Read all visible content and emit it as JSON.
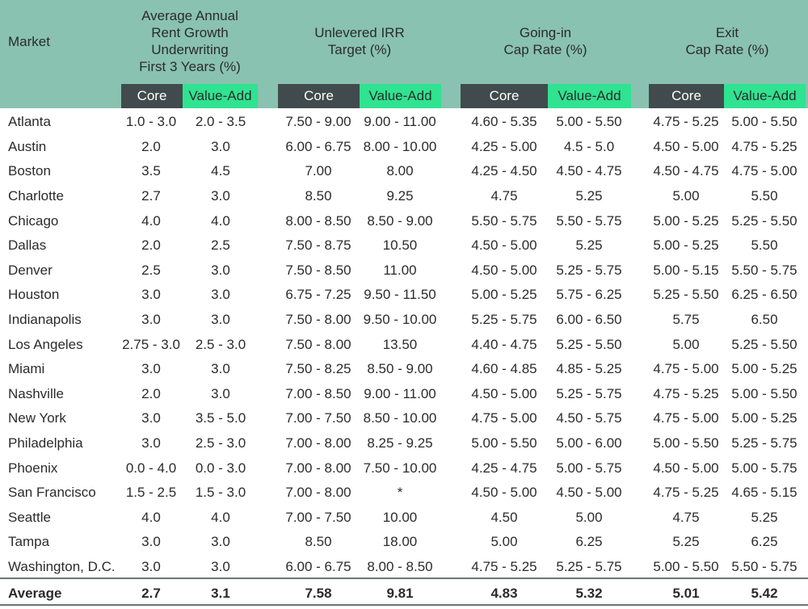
{
  "header": {
    "market": "Market",
    "groups": [
      {
        "lines": [
          "Average Annual",
          "Rent Growth",
          "Underwriting",
          "First 3 Years (%)"
        ]
      },
      {
        "lines": [
          "Unlevered IRR",
          "Target (%)"
        ]
      },
      {
        "lines": [
          "Going-in",
          "Cap Rate (%)"
        ]
      },
      {
        "lines": [
          "Exit",
          "Cap Rate (%)"
        ]
      }
    ],
    "core": "Core",
    "value_add": "Value-Add"
  },
  "rows": [
    {
      "market": "Atlanta",
      "values": [
        "1.0 - 3.0",
        "2.0 - 3.5",
        "7.50 - 9.00",
        "9.00 - 11.00",
        "4.60 - 5.35",
        "5.00 - 5.50",
        "4.75 - 5.25",
        "5.00 - 5.50"
      ]
    },
    {
      "market": "Austin",
      "values": [
        "2.0",
        "3.0",
        "6.00 - 6.75",
        "8.00 - 10.00",
        "4.25 - 5.00",
        "4.5 - 5.0",
        "4.50 - 5.00",
        "4.75 - 5.25"
      ]
    },
    {
      "market": "Boston",
      "values": [
        "3.5",
        "4.5",
        "7.00",
        "8.00",
        "4.25 - 4.50",
        "4.50 - 4.75",
        "4.50 - 4.75",
        "4.75 - 5.00"
      ]
    },
    {
      "market": "Charlotte",
      "values": [
        "2.7",
        "3.0",
        "8.50",
        "9.25",
        "4.75",
        "5.25",
        "5.00",
        "5.50"
      ]
    },
    {
      "market": "Chicago",
      "values": [
        "4.0",
        "4.0",
        "8.00 - 8.50",
        "8.50 - 9.00",
        "5.50 - 5.75",
        "5.50 - 5.75",
        "5.00 - 5.25",
        "5.25 - 5.50"
      ]
    },
    {
      "market": "Dallas",
      "values": [
        "2.0",
        "2.5",
        "7.50 - 8.75",
        "10.50",
        "4.50 - 5.00",
        "5.25",
        "5.00 - 5.25",
        "5.50"
      ]
    },
    {
      "market": "Denver",
      "values": [
        "2.5",
        "3.0",
        "7.50 - 8.50",
        "11.00",
        "4.50 - 5.00",
        "5.25 - 5.75",
        "5.00 - 5.15",
        "5.50 - 5.75"
      ]
    },
    {
      "market": "Houston",
      "values": [
        "3.0",
        "3.0",
        "6.75 - 7.25",
        "9.50 - 11.50",
        "5.00 - 5.25",
        "5.75 - 6.25",
        "5.25 - 5.50",
        "6.25 - 6.50"
      ]
    },
    {
      "market": "Indianapolis",
      "values": [
        "3.0",
        "3.0",
        "7.50 - 8.00",
        "9.50 - 10.00",
        "5.25 - 5.75",
        "6.00 - 6.50",
        "5.75",
        "6.50"
      ]
    },
    {
      "market": "Los Angeles",
      "values": [
        "2.75 - 3.0",
        "2.5 - 3.0",
        "7.50 - 8.00",
        "13.50",
        "4.40 - 4.75",
        "5.25 - 5.50",
        "5.00",
        "5.25 - 5.50"
      ]
    },
    {
      "market": "Miami",
      "values": [
        "3.0",
        "3.0",
        "7.50 - 8.25",
        "8.50 - 9.00",
        "4.60 - 4.85",
        "4.85 - 5.25",
        "4.75 - 5.00",
        "5.00 - 5.25"
      ]
    },
    {
      "market": "Nashville",
      "values": [
        "2.0",
        "3.0",
        "7.00 - 8.50",
        "9.00 - 11.00",
        "4.50 - 5.00",
        "5.25 - 5.75",
        "4.75 - 5.25",
        "5.00 - 5.50"
      ]
    },
    {
      "market": "New York",
      "values": [
        "3.0",
        "3.5 - 5.0",
        "7.00 - 7.50",
        "8.50 - 10.00",
        "4.75 - 5.00",
        "4.50 - 5.75",
        "4.75 - 5.00",
        "5.00 - 5.25"
      ]
    },
    {
      "market": "Philadelphia",
      "values": [
        "3.0",
        "2.5 - 3.0",
        "7.00 - 8.00",
        "8.25 - 9.25",
        "5.00 - 5.50",
        "5.00 - 6.00",
        "5.00 - 5.50",
        "5.25 - 5.75"
      ]
    },
    {
      "market": "Phoenix",
      "values": [
        "0.0 - 4.0",
        "0.0 - 3.0",
        "7.00 - 8.00",
        "7.50 - 10.00",
        "4.25 - 4.75",
        "5.00 - 5.75",
        "4.50 - 5.00",
        "5.00 - 5.75"
      ]
    },
    {
      "market": "San Francisco",
      "values": [
        "1.5 - 2.5",
        "1.5 - 3.0",
        "7.00 - 8.00",
        "*",
        "4.50 - 5.00",
        "4.50 - 5.00",
        "4.75 - 5.25",
        "4.65 - 5.15"
      ]
    },
    {
      "market": "Seattle",
      "values": [
        "4.0",
        "4.0",
        "7.00 - 7.50",
        "10.00",
        "4.50",
        "5.00",
        "4.75",
        "5.25"
      ]
    },
    {
      "market": "Tampa",
      "values": [
        "3.0",
        "3.0",
        "8.50",
        "18.00",
        "5.00",
        "6.25",
        "5.25",
        "6.25"
      ]
    },
    {
      "market": "Washington, D.C.",
      "values": [
        "3.0",
        "3.0",
        "6.00 - 6.75",
        "8.00 - 8.50",
        "4.75 - 5.25",
        "5.25 - 5.75",
        "5.00 - 5.50",
        "5.50 - 5.75"
      ]
    }
  ],
  "average": {
    "market": "Average",
    "values": [
      "2.7",
      "3.1",
      "7.58",
      "9.81",
      "4.83",
      "5.32",
      "5.01",
      "5.42"
    ]
  }
}
